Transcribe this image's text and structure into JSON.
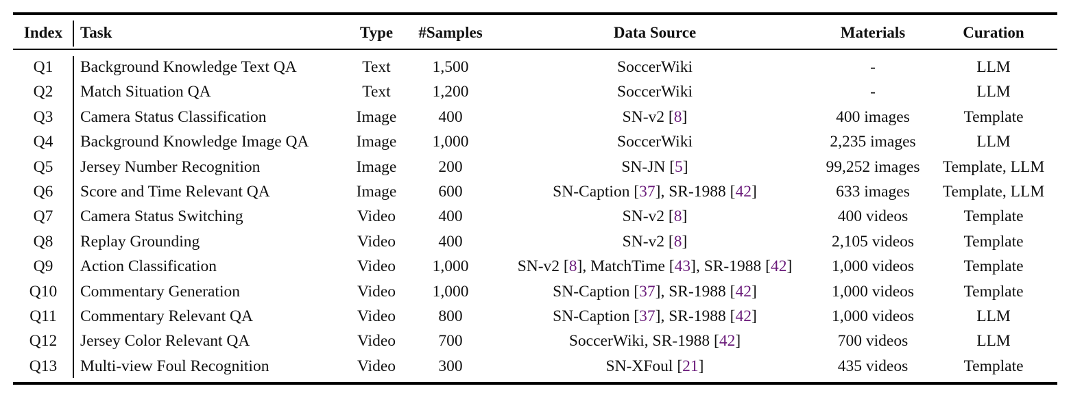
{
  "colors": {
    "rule": "#000000",
    "citation": "#6a1b7a"
  },
  "headers": {
    "index": "Index",
    "task": "Task",
    "type": "Type",
    "samples": "#Samples",
    "source": "Data Source",
    "materials": "Materials",
    "curation": "Curation"
  },
  "rows": [
    {
      "index": "Q1",
      "task": "Background Knowledge Text QA",
      "type": "Text",
      "samples": "1,500",
      "source": [
        {
          "t": "SoccerWiki"
        }
      ],
      "materials": "-",
      "curation": "LLM"
    },
    {
      "index": "Q2",
      "task": "Match Situation QA",
      "type": "Text",
      "samples": "1,200",
      "source": [
        {
          "t": "SoccerWiki"
        }
      ],
      "materials": "-",
      "curation": "LLM"
    },
    {
      "index": "Q3",
      "task": "Camera Status Classification",
      "type": "Image",
      "samples": "400",
      "source": [
        {
          "t": "SN-v2 ["
        },
        {
          "t": "8",
          "ref": true
        },
        {
          "t": "]"
        }
      ],
      "materials": "400 images",
      "curation": "Template"
    },
    {
      "index": "Q4",
      "task": "Background Knowledge Image QA",
      "type": "Image",
      "samples": "1,000",
      "source": [
        {
          "t": "SoccerWiki"
        }
      ],
      "materials": "2,235 images",
      "curation": "LLM"
    },
    {
      "index": "Q5",
      "task": "Jersey Number Recognition",
      "type": "Image",
      "samples": "200",
      "source": [
        {
          "t": "SN-JN ["
        },
        {
          "t": "5",
          "ref": true
        },
        {
          "t": "]"
        }
      ],
      "materials": "99,252 images",
      "curation": "Template, LLM"
    },
    {
      "index": "Q6",
      "task": "Score and Time Relevant QA",
      "type": "Image",
      "samples": "600",
      "source": [
        {
          "t": "SN-Caption ["
        },
        {
          "t": "37",
          "ref": true
        },
        {
          "t": "], SR-1988 ["
        },
        {
          "t": "42",
          "ref": true
        },
        {
          "t": "]"
        }
      ],
      "materials": "633 images",
      "curation": "Template, LLM"
    },
    {
      "index": "Q7",
      "task": "Camera Status Switching",
      "type": "Video",
      "samples": "400",
      "source": [
        {
          "t": "SN-v2 ["
        },
        {
          "t": "8",
          "ref": true
        },
        {
          "t": "]"
        }
      ],
      "materials": "400 videos",
      "curation": "Template"
    },
    {
      "index": "Q8",
      "task": "Replay Grounding",
      "type": "Video",
      "samples": "400",
      "source": [
        {
          "t": "SN-v2 ["
        },
        {
          "t": "8",
          "ref": true
        },
        {
          "t": "]"
        }
      ],
      "materials": "2,105 videos",
      "curation": "Template"
    },
    {
      "index": "Q9",
      "task": "Action Classification",
      "type": "Video",
      "samples": "1,000",
      "source": [
        {
          "t": "SN-v2 ["
        },
        {
          "t": "8",
          "ref": true
        },
        {
          "t": "], MatchTime ["
        },
        {
          "t": "43",
          "ref": true
        },
        {
          "t": "], SR-1988 ["
        },
        {
          "t": "42",
          "ref": true
        },
        {
          "t": "]"
        }
      ],
      "materials": "1,000 videos",
      "curation": "Template"
    },
    {
      "index": "Q10",
      "task": "Commentary Generation",
      "type": "Video",
      "samples": "1,000",
      "source": [
        {
          "t": "SN-Caption ["
        },
        {
          "t": "37",
          "ref": true
        },
        {
          "t": "], SR-1988 ["
        },
        {
          "t": "42",
          "ref": true
        },
        {
          "t": "]"
        }
      ],
      "materials": "1,000 videos",
      "curation": "Template"
    },
    {
      "index": "Q11",
      "task": "Commentary Relevant QA",
      "type": "Video",
      "samples": "800",
      "source": [
        {
          "t": "SN-Caption ["
        },
        {
          "t": "37",
          "ref": true
        },
        {
          "t": "], SR-1988 ["
        },
        {
          "t": "42",
          "ref": true
        },
        {
          "t": "]"
        }
      ],
      "materials": "1,000 videos",
      "curation": "LLM"
    },
    {
      "index": "Q12",
      "task": "Jersey Color Relevant QA",
      "type": "Video",
      "samples": "700",
      "source": [
        {
          "t": "SoccerWiki, SR-1988 ["
        },
        {
          "t": "42",
          "ref": true
        },
        {
          "t": "]"
        }
      ],
      "materials": "700 videos",
      "curation": "LLM"
    },
    {
      "index": "Q13",
      "task": "Multi-view Foul Recognition",
      "type": "Video",
      "samples": "300",
      "source": [
        {
          "t": "SN-XFoul ["
        },
        {
          "t": "21",
          "ref": true
        },
        {
          "t": "]"
        }
      ],
      "materials": "435 videos",
      "curation": "Template"
    }
  ]
}
